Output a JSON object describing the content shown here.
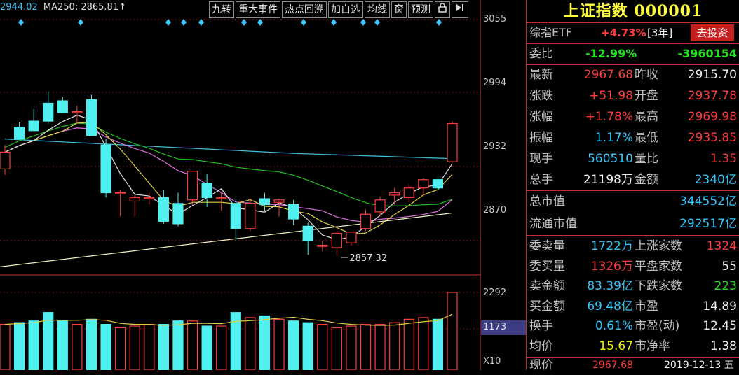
{
  "header": {
    "ma_items": [
      {
        "text": "2944.02",
        "color": "#3cc8ff"
      },
      {
        "text": "MA250: 2865.81↑",
        "color": "#e0e0e0"
      }
    ],
    "arrow_text": "↑"
  },
  "toolbar": {
    "buttons": [
      "九转",
      "重大事件",
      "热点回溯",
      "加自选",
      "均线",
      "窗",
      "预测"
    ],
    "lock_icon": "lock-icon",
    "collapse_icon": "collapse-right-icon"
  },
  "price_axis": {
    "labels": [
      "3055",
      "2994",
      "2932",
      "2870"
    ]
  },
  "volume_axis": {
    "top": "2292",
    "current": "1173",
    "unit": "X10"
  },
  "annotation": {
    "low_label": "2857.32"
  },
  "chart_data": {
    "type": "candlestick",
    "ylim": [
      2840,
      3055
    ],
    "candles": [
      {
        "o": 2930,
        "h": 2950,
        "l": 2925,
        "c": 2944
      },
      {
        "o": 2965,
        "h": 2969,
        "l": 2955,
        "c": 2955
      },
      {
        "o": 2970,
        "h": 2980,
        "l": 2962,
        "c": 2962
      },
      {
        "o": 2985,
        "h": 2995,
        "l": 2968,
        "c": 2970
      },
      {
        "o": 2987,
        "h": 2990,
        "l": 2977,
        "c": 2977
      },
      {
        "o": 2978,
        "h": 2983,
        "l": 2968,
        "c": 2978
      },
      {
        "o": 2988,
        "h": 2992,
        "l": 2958,
        "c": 2958
      },
      {
        "o": 2950,
        "h": 2955,
        "l": 2906,
        "c": 2910
      },
      {
        "o": 2910,
        "h": 2912,
        "l": 2890,
        "c": 2910
      },
      {
        "o": 2903,
        "h": 2908,
        "l": 2890,
        "c": 2906
      },
      {
        "o": 2906,
        "h": 2910,
        "l": 2900,
        "c": 2906
      },
      {
        "o": 2906,
        "h": 2912,
        "l": 2884,
        "c": 2886
      },
      {
        "o": 2901,
        "h": 2910,
        "l": 2882,
        "c": 2884
      },
      {
        "o": 2904,
        "h": 2928,
        "l": 2900,
        "c": 2928
      },
      {
        "o": 2918,
        "h": 2926,
        "l": 2898,
        "c": 2906
      },
      {
        "o": 2906,
        "h": 2910,
        "l": 2895,
        "c": 2906
      },
      {
        "o": 2901,
        "h": 2905,
        "l": 2870,
        "c": 2880
      },
      {
        "o": 2880,
        "h": 2905,
        "l": 2878,
        "c": 2901
      },
      {
        "o": 2905,
        "h": 2910,
        "l": 2895,
        "c": 2900
      },
      {
        "o": 2902,
        "h": 2905,
        "l": 2890,
        "c": 2904
      },
      {
        "o": 2900,
        "h": 2904,
        "l": 2883,
        "c": 2888
      },
      {
        "o": 2882,
        "h": 2885,
        "l": 2858,
        "c": 2870
      },
      {
        "o": 2866,
        "h": 2870,
        "l": 2861,
        "c": 2866
      },
      {
        "o": 2864,
        "h": 2878,
        "l": 2857,
        "c": 2876
      },
      {
        "o": 2868,
        "h": 2877,
        "l": 2866,
        "c": 2877
      },
      {
        "o": 2880,
        "h": 2896,
        "l": 2878,
        "c": 2892
      },
      {
        "o": 2894,
        "h": 2907,
        "l": 2890,
        "c": 2904
      },
      {
        "o": 2908,
        "h": 2914,
        "l": 2900,
        "c": 2910
      },
      {
        "o": 2906,
        "h": 2917,
        "l": 2902,
        "c": 2914
      },
      {
        "o": 2914,
        "h": 2922,
        "l": 2907,
        "c": 2921
      },
      {
        "o": 2921,
        "h": 2924,
        "l": 2912,
        "c": 2914
      },
      {
        "o": 2936,
        "h": 2970,
        "l": 2935,
        "c": 2968
      }
    ],
    "volumes": [
      1350,
      1400,
      1450,
      1700,
      1450,
      1350,
      1500,
      1350,
      1250,
      1300,
      1350,
      1350,
      1450,
      1450,
      1300,
      1300,
      1700,
      1550,
      1600,
      1500,
      1450,
      1400,
      1350,
      1250,
      1300,
      1350,
      1350,
      1400,
      1500,
      1550,
      1500,
      2292
    ]
  },
  "panel": {
    "title": "上证指数 000001",
    "etf_label": "综指ETF",
    "etf_change": "+4.73%",
    "etf_period": "[3年]",
    "invest_button": "去投资",
    "weibi_label": "委比",
    "weibi_pct": "-12.99%",
    "weibi_value": "-3960154",
    "quote_rows": [
      {
        "l1": "最新",
        "v1": "2967.68",
        "c1": "red",
        "l2": "昨收",
        "v2": "2915.70",
        "c2": "white"
      },
      {
        "l1": "涨跌",
        "v1": "+51.98",
        "c1": "red",
        "l2": "开盘",
        "v2": "2937.78",
        "c2": "red"
      },
      {
        "l1": "涨幅",
        "v1": "+1.78%",
        "c1": "red",
        "l2": "最高",
        "v2": "2969.98",
        "c2": "red"
      },
      {
        "l1": "振幅",
        "v1": "1.17%",
        "c1": "cyan",
        "l2": "最低",
        "v2": "2935.85",
        "c2": "red"
      },
      {
        "l1": "现手",
        "v1": "560510",
        "c1": "cyan",
        "l2": "量比",
        "v2": "1.35",
        "c2": "red"
      },
      {
        "l1": "总手",
        "v1": "21198万",
        "c1": "white",
        "l2": "金额",
        "v2": "2340亿",
        "c2": "cyan"
      }
    ],
    "mktcap": {
      "label": "总市值",
      "value": "344552亿"
    },
    "float_mktcap": {
      "label": "流通市值",
      "value": "292517亿"
    },
    "bottom_rows": [
      {
        "l1": "委卖量",
        "v1": "1722万",
        "c1": "cyan",
        "l2": "上涨家数",
        "v2": "1324",
        "c2": "red"
      },
      {
        "l1": "委买量",
        "v1": "1326万",
        "c1": "red",
        "l2": "平盘家数",
        "v2": "55",
        "c2": "white"
      },
      {
        "l1": "卖金额",
        "v1": "83.39亿",
        "c1": "cyan",
        "l2": "下跌家数",
        "v2": "223",
        "c2": "green"
      },
      {
        "l1": "买金额",
        "v1": "69.48亿",
        "c1": "cyan",
        "l2": "市盈",
        "v2": "14.89",
        "c2": "white"
      },
      {
        "l1": "换手",
        "v1": "0.61%",
        "c1": "cyan",
        "l2": "市盈(动)",
        "v2": "12.45",
        "c2": "white"
      },
      {
        "l1": "均价",
        "v1": "15.67",
        "c1": "yellow",
        "l2": "市净率",
        "v2": "1.38",
        "c2": "white"
      }
    ],
    "footer": {
      "label": "现价",
      "price": "2967.68",
      "date": "2019-12-13 五"
    }
  },
  "colors": {
    "up": "#ff3c3c",
    "down": "#50f0f0",
    "grid": "#7a1010",
    "axis_border": "#c03030"
  }
}
